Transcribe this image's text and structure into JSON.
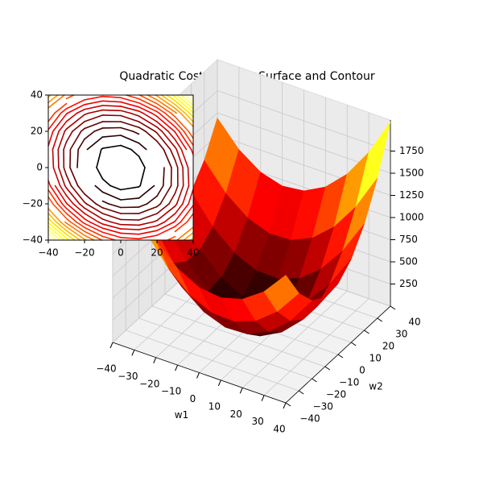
{
  "chart_data": [
    {
      "type": "surface",
      "title": "Quadratic Cost Function Surface and Contour",
      "xlabel": "w1",
      "ylabel": "w2",
      "x": [
        -40,
        -30,
        -20,
        -10,
        0,
        10,
        20,
        30,
        40
      ],
      "y": [
        -40,
        -30,
        -20,
        -10,
        0,
        10,
        20,
        30,
        40
      ],
      "z": [
        [
          2080,
          1650,
          1320,
          1090,
          960,
          930,
          1000,
          1170,
          1440
        ],
        [
          1580,
          1170,
          860,
          650,
          540,
          530,
          620,
          810,
          1100
        ],
        [
          1200,
          810,
          520,
          330,
          240,
          250,
          360,
          570,
          880
        ],
        [
          940,
          570,
          300,
          130,
          60,
          90,
          220,
          450,
          780
        ],
        [
          800,
          450,
          200,
          50,
          0,
          50,
          200,
          450,
          800
        ],
        [
          780,
          450,
          220,
          90,
          60,
          130,
          300,
          570,
          940
        ],
        [
          880,
          570,
          360,
          250,
          240,
          330,
          520,
          810,
          1200
        ],
        [
          1100,
          810,
          620,
          530,
          540,
          650,
          860,
          1170,
          1580
        ],
        [
          1440,
          1170,
          1000,
          930,
          960,
          1090,
          1320,
          1650,
          2080
        ]
      ],
      "xlim": [
        -40,
        40
      ],
      "ylim": [
        -40,
        40
      ],
      "zlim": [
        0,
        2100
      ],
      "xticks": [
        {
          "value": -40,
          "label": "−40"
        },
        {
          "value": -30,
          "label": "−30"
        },
        {
          "value": -20,
          "label": "−20"
        },
        {
          "value": -10,
          "label": "−10"
        },
        0,
        10,
        20,
        30,
        40
      ],
      "yticks": [
        {
          "value": -40,
          "label": "−40"
        },
        {
          "value": -30,
          "label": "−30"
        },
        {
          "value": -20,
          "label": "−20"
        },
        {
          "value": -10,
          "label": "−10"
        },
        0,
        10,
        20,
        30,
        40
      ],
      "zticks": [
        250,
        500,
        750,
        1000,
        1250,
        1500,
        1750
      ],
      "colormap": "hot",
      "grid": true
    },
    {
      "type": "contour",
      "source": "chart_data.0.z",
      "levels": [
        100,
        200,
        300,
        400,
        500,
        600,
        700,
        800,
        900,
        1000,
        1100,
        1200,
        1300,
        1400,
        1500,
        1600,
        1700,
        1800,
        1900,
        2000
      ],
      "xlim": [
        -40,
        40
      ],
      "ylim": [
        -40,
        40
      ],
      "xticks": [
        {
          "value": -40,
          "label": "−40"
        },
        {
          "value": -20,
          "label": "−20"
        },
        0,
        20,
        40
      ],
      "yticks": [
        {
          "value": -40,
          "label": "−40"
        },
        {
          "value": -20,
          "label": "−20"
        },
        0,
        20,
        40
      ],
      "colormap": "hot"
    }
  ]
}
